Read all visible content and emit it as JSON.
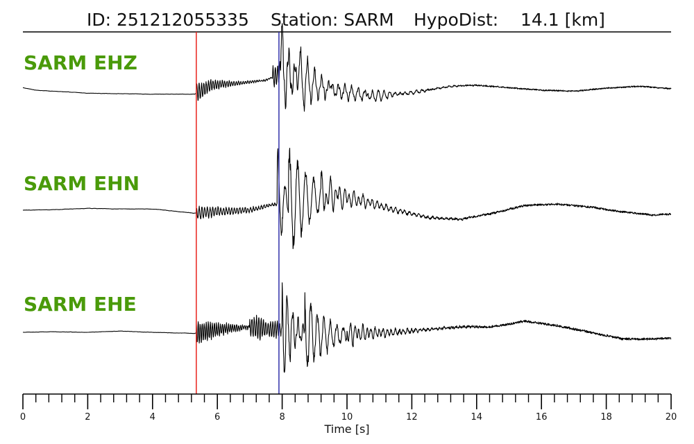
{
  "header": {
    "id_text": "ID: 251212055335",
    "station_text": "Station: SARM",
    "hypodist_text": "HypoDist:    14.1 [km]"
  },
  "colors": {
    "trace": "#000000",
    "label": "#4a9a0a",
    "p_pick": "#e8221b",
    "s_pick": "#2f2fa8",
    "axis": "#000000"
  },
  "chart_data": {
    "type": "line",
    "title": "ID: 251212055335   Station: SARM   HypoDist:    14.1 [km]",
    "xlabel": "Time [s]",
    "xlim": [
      0,
      20
    ],
    "x_ticks": [
      "0",
      "2",
      "4",
      "6",
      "8",
      "10",
      "12",
      "14",
      "16",
      "18",
      "20"
    ],
    "minor_tick_step": 0.4,
    "grid": false,
    "picks": [
      {
        "phase": "P",
        "time": 5.35,
        "color": "#e8221b"
      },
      {
        "phase": "S",
        "time": 7.9,
        "color": "#2f2fa8"
      }
    ],
    "series": [
      {
        "name": "SARM EHZ",
        "envelope": {
          "t": [
            0,
            0.4,
            2,
            4,
            5.3,
            5.8,
            6.8,
            7.5,
            7.85,
            7.95,
            8.2,
            8.6,
            9.2,
            10,
            10.8,
            12,
            13.2,
            14,
            15,
            16,
            17,
            18,
            19,
            20
          ],
          "level": [
            0.05,
            0.0,
            -0.06,
            -0.08,
            -0.08,
            0.1,
            0.15,
            0.2,
            0.3,
            0.4,
            0.3,
            0.2,
            0.05,
            -0.05,
            -0.12,
            -0.05,
            0.08,
            0.1,
            0.05,
            0.0,
            -0.02,
            0.04,
            0.08,
            0.03
          ]
        },
        "events": [
          {
            "t": 5.35,
            "amp": 0.18,
            "width": 0.8,
            "freq": 14
          },
          {
            "t": 7.7,
            "amp": 0.2,
            "width": 1.3,
            "freq": 14
          },
          {
            "t": 7.95,
            "amp": 1.0,
            "width": 0.3,
            "freq": 5
          },
          {
            "t": 8.5,
            "amp": 0.6,
            "width": 0.6,
            "freq": 4.5
          },
          {
            "t": 9.5,
            "amp": 0.22,
            "width": 0.9,
            "freq": 5
          },
          {
            "t": 10.6,
            "amp": 0.1,
            "width": 1.0,
            "freq": 6
          }
        ],
        "noise_after_p": 0.025
      },
      {
        "name": "SARM EHN",
        "envelope": {
          "t": [
            0,
            1,
            2,
            3,
            4,
            5.3,
            6,
            7,
            7.8,
            8.5,
            9.5,
            10.5,
            11.5,
            12.5,
            13.5,
            14.5,
            15.5,
            16.5,
            17.5,
            18.5,
            19.5,
            20
          ],
          "level": [
            0.0,
            0.01,
            0.03,
            0.02,
            0.02,
            -0.05,
            -0.02,
            0.0,
            0.1,
            0.15,
            0.25,
            0.15,
            0.0,
            -0.12,
            -0.15,
            -0.05,
            0.08,
            0.1,
            0.05,
            -0.03,
            -0.08,
            -0.06
          ]
        },
        "events": [
          {
            "t": 5.35,
            "amp": 0.1,
            "width": 1.6,
            "freq": 12
          },
          {
            "t": 7.85,
            "amp": 0.85,
            "width": 0.22,
            "freq": 4.5
          },
          {
            "t": 8.2,
            "amp": 0.9,
            "width": 0.7,
            "freq": 4
          },
          {
            "t": 9.2,
            "amp": 0.2,
            "width": 1.3,
            "freq": 7
          }
        ],
        "noise_after_p": 0.03
      },
      {
        "name": "SARM EHE",
        "envelope": {
          "t": [
            0,
            1,
            2,
            3,
            4,
            5.3,
            6,
            7,
            7.9,
            8.5,
            9.5,
            10.5,
            11.5,
            12.5,
            13.5,
            14.5,
            15.5,
            16.5,
            17.5,
            18.5,
            19.5,
            20
          ],
          "level": [
            0.0,
            0.01,
            0.0,
            0.02,
            0.0,
            -0.02,
            0.05,
            0.1,
            0.05,
            0.0,
            -0.05,
            -0.02,
            0.0,
            0.05,
            0.1,
            0.1,
            0.2,
            0.12,
            0.0,
            -0.12,
            -0.12,
            -0.1
          ]
        },
        "events": [
          {
            "t": 5.35,
            "amp": 0.22,
            "width": 0.9,
            "freq": 16
          },
          {
            "t": 7.0,
            "amp": 0.2,
            "width": 1.5,
            "freq": 14
          },
          {
            "t": 8.0,
            "amp": 1.0,
            "width": 0.3,
            "freq": 6
          },
          {
            "t": 8.7,
            "amp": 0.7,
            "width": 0.7,
            "freq": 5
          },
          {
            "t": 10.0,
            "amp": 0.15,
            "width": 1.2,
            "freq": 8
          }
        ],
        "noise_after_p": 0.04
      }
    ]
  }
}
